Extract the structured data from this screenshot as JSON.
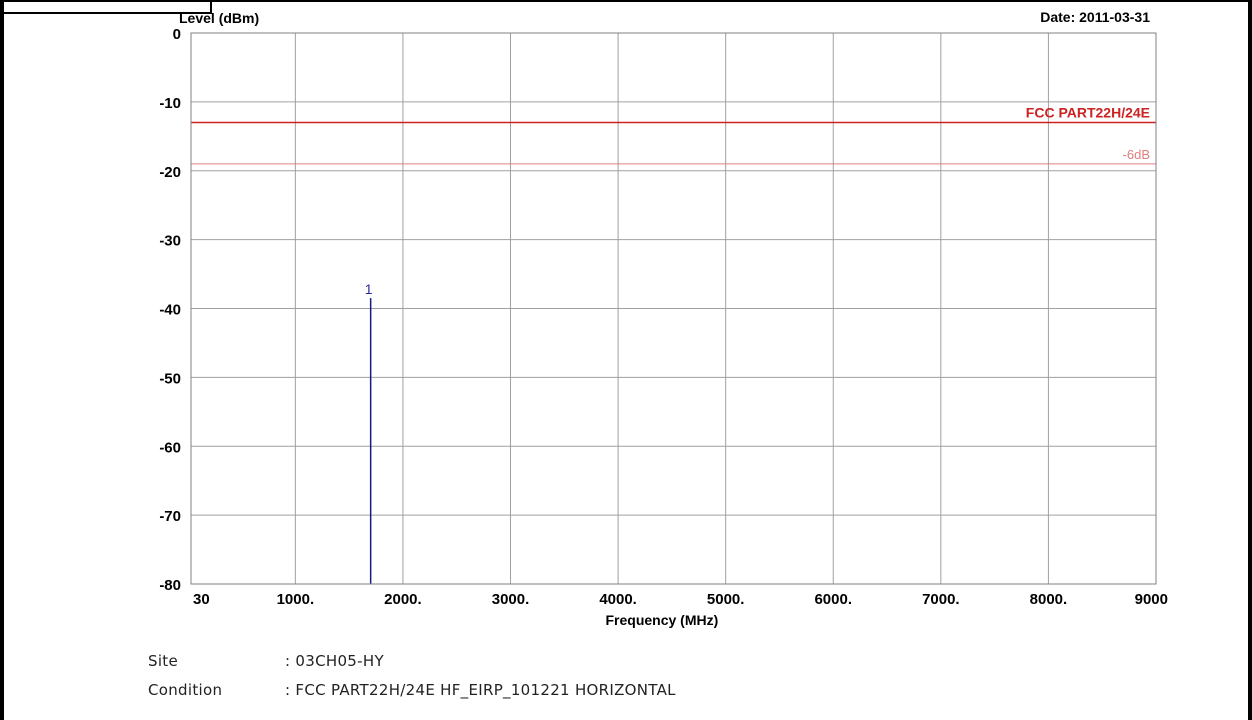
{
  "chart_data": {
    "type": "line",
    "ylabel": "Level (dBm)",
    "xlabel": "Frequency (MHz)",
    "date_label": "Date: 2011-03-31",
    "xlim": [
      30,
      9000
    ],
    "ylim": [
      -80,
      0
    ],
    "grid": true,
    "y_ticks": [
      {
        "value": 0,
        "label": "0"
      },
      {
        "value": -10,
        "label": "-10"
      },
      {
        "value": -20,
        "label": "-20"
      },
      {
        "value": -30,
        "label": "-30"
      },
      {
        "value": -40,
        "label": "-40"
      },
      {
        "value": -50,
        "label": "-50"
      },
      {
        "value": -60,
        "label": "-60"
      },
      {
        "value": -70,
        "label": "-70"
      },
      {
        "value": -80,
        "label": "-80"
      }
    ],
    "x_ticks": [
      {
        "value": 30,
        "label": "30"
      },
      {
        "value": 1000,
        "label": "1000."
      },
      {
        "value": 2000,
        "label": "2000."
      },
      {
        "value": 3000,
        "label": "3000."
      },
      {
        "value": 4000,
        "label": "4000."
      },
      {
        "value": 5000,
        "label": "5000."
      },
      {
        "value": 6000,
        "label": "6000."
      },
      {
        "value": 7000,
        "label": "7000."
      },
      {
        "value": 8000,
        "label": "8000."
      },
      {
        "value": 9000,
        "label": "9000"
      }
    ],
    "limit_lines": [
      {
        "name": "FCC PART22H/24E",
        "value": -13,
        "color": "#cc2222"
      },
      {
        "name": "-6dB",
        "value": -19,
        "color": "#e08080"
      }
    ],
    "markers": [
      {
        "label": "1",
        "x": 1700,
        "y": -38.5,
        "color": "#1a1a7a"
      }
    ]
  },
  "info": {
    "site_label": "Site",
    "site_value": ": 03CH05-HY",
    "condition_label": "Condition",
    "condition_value": ": FCC PART22H/24E HF_EIRP_101221 HORIZONTAL"
  },
  "colors": {
    "grid": "#a0a0a0",
    "plot_border": "#808080",
    "axis_text": "#000000"
  }
}
